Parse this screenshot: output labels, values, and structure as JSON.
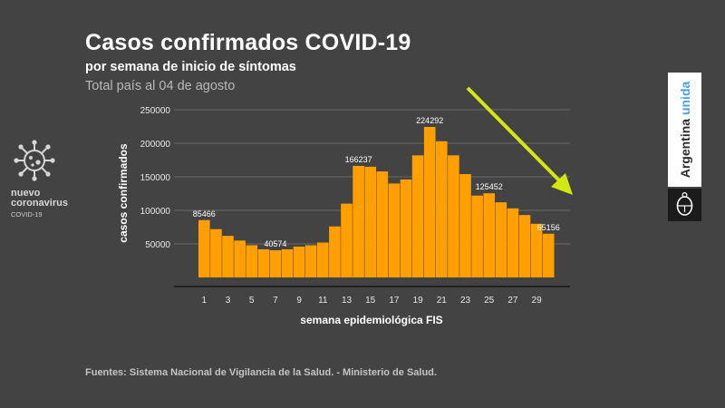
{
  "header": {
    "title": "Casos confirmados COVID-19",
    "subtitle": "por semana de inicio de síntomas",
    "date_note": "Total país al 04 de agosto"
  },
  "virus_badge": {
    "icon": "coronavirus-icon",
    "name_line1": "nuevo",
    "name_line2": "coronavirus",
    "tag": "COVID-19"
  },
  "brand": {
    "word1": "Argentina",
    "word2": "unida",
    "seal_icon": "national-seal-icon",
    "colors": {
      "word2": "#4aa3df",
      "seal_bg": "#1b1b1b"
    }
  },
  "colors": {
    "bar": "#ffa000",
    "arrow": "#d2e812",
    "background": "#434343",
    "grid": "#6a6a6a"
  },
  "source": "Fuentes: Sistema Nacional de Vigilancia de la Salud. - Ministerio de Salud.",
  "chart_data": {
    "type": "bar",
    "title": "",
    "xlabel": "semana epidemiológica FIS",
    "ylabel": "casos confirmados",
    "ylim": [
      0,
      250000
    ],
    "yticks": [
      50000,
      100000,
      150000,
      200000,
      250000
    ],
    "grid": true,
    "categories": [
      1,
      2,
      3,
      4,
      5,
      6,
      7,
      8,
      9,
      10,
      11,
      12,
      13,
      14,
      15,
      16,
      17,
      18,
      19,
      20,
      21,
      22,
      23,
      24,
      25,
      26,
      27,
      28,
      29,
      30
    ],
    "x_tick_labels": [
      "1",
      "3",
      "5",
      "7",
      "9",
      "11",
      "13",
      "15",
      "17",
      "19",
      "21",
      "23",
      "25",
      "27",
      "29"
    ],
    "values": [
      85466,
      72000,
      62000,
      55000,
      48000,
      42000,
      40574,
      42000,
      46000,
      48000,
      52000,
      76000,
      110000,
      166237,
      165000,
      158000,
      140000,
      146000,
      182000,
      224292,
      203000,
      182000,
      154000,
      122000,
      125452,
      112000,
      103000,
      93000,
      80000,
      65156
    ],
    "data_labels": [
      {
        "week": 1,
        "text": "85466"
      },
      {
        "week": 7,
        "text": "40574"
      },
      {
        "week": 14,
        "text": "166237"
      },
      {
        "week": 20,
        "text": "224292"
      },
      {
        "week": 25,
        "text": "125452"
      },
      {
        "week": 30,
        "text": "65156"
      }
    ],
    "annotation": "downward trend arrow"
  }
}
